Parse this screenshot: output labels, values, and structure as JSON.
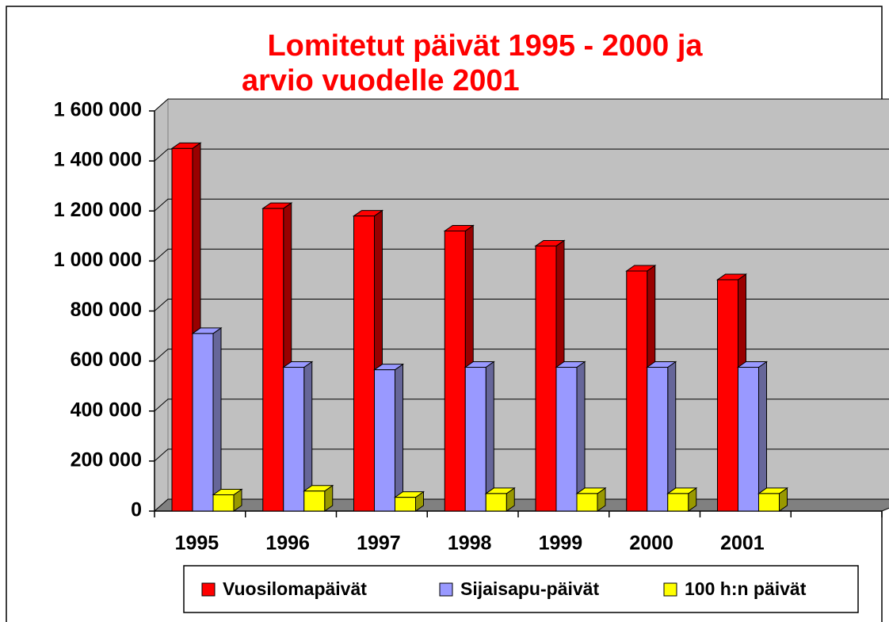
{
  "chart_data": {
    "type": "bar3d",
    "title": [
      "Lomitetut päivät 1995 - 2000 ja",
      "arvio vuodelle 2001"
    ],
    "title_color": "#ff0000",
    "categories": [
      "1995",
      "1996",
      "1997",
      "1998",
      "1999",
      "2000",
      "2001",
      null
    ],
    "series": [
      {
        "name": "Vuosilomapäivät",
        "color": "#ff0000",
        "side_color": "#990000",
        "values": [
          1450000,
          1210000,
          1180000,
          1120000,
          1060000,
          960000,
          925000,
          null
        ]
      },
      {
        "name": "Sijaisapu-päivät",
        "color": "#9999ff",
        "side_color": "#666699",
        "values": [
          710000,
          575000,
          565000,
          575000,
          575000,
          575000,
          575000,
          null
        ]
      },
      {
        "name": "100 h:n päivät",
        "color": "#ffff00",
        "side_color": "#999900",
        "values": [
          65000,
          80000,
          55000,
          70000,
          70000,
          70000,
          70000,
          null
        ]
      }
    ],
    "ylim": [
      0,
      1600000
    ],
    "yticks": [
      0,
      {
        "value": 200000,
        "label": "200 000"
      },
      {
        "value": 400000,
        "label": "400 000"
      },
      {
        "value": 600000,
        "label": "600 000"
      },
      {
        "value": 800000,
        "label": "800 000"
      },
      {
        "value": 1000000,
        "label": "1 000 000"
      },
      {
        "value": 1200000,
        "label": "1 200 000"
      },
      {
        "value": 1400000,
        "label": "1 400 000"
      },
      {
        "value": 1600000,
        "label": "1 600 000"
      }
    ],
    "grid": true,
    "legend": "bottom"
  }
}
